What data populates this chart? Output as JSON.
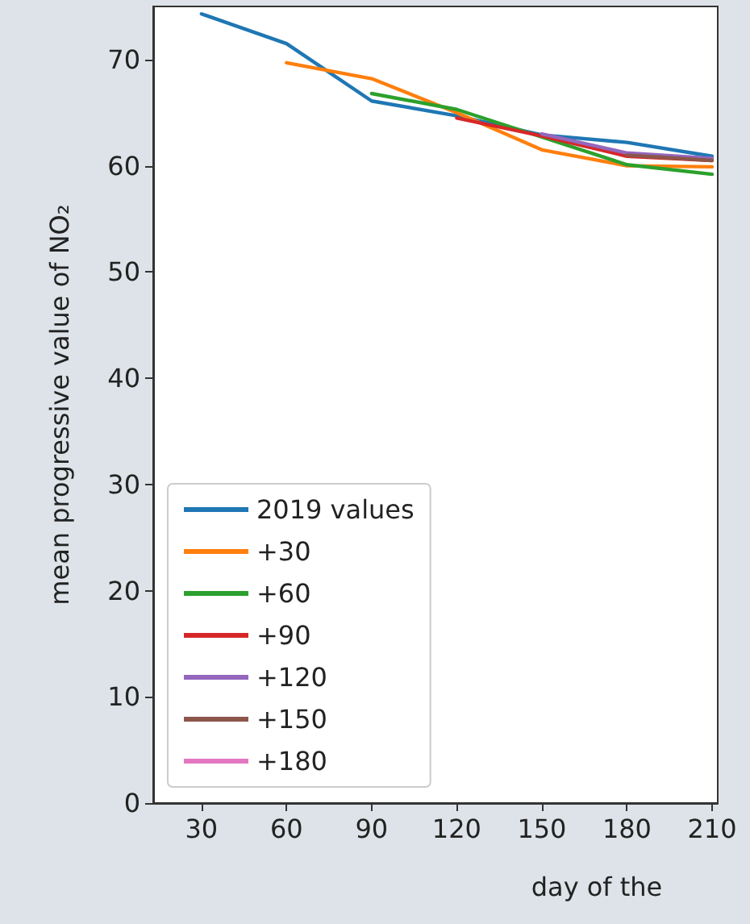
{
  "chart_data": {
    "type": "line",
    "xlabel": "day of the",
    "ylabel": "mean progressive value of NO₂",
    "x": [
      30,
      60,
      90,
      120,
      150,
      180,
      210
    ],
    "series": [
      {
        "name": "2019 values",
        "color": "#1f77b4",
        "values": [
          74.3,
          71.5,
          66.1,
          64.7,
          62.9,
          62.2,
          60.9
        ]
      },
      {
        "name": "+30",
        "color": "#ff7f0e",
        "values": [
          null,
          69.7,
          68.2,
          65.0,
          61.5,
          60.0,
          59.9
        ]
      },
      {
        "name": "+60",
        "color": "#2ca02c",
        "values": [
          null,
          null,
          66.8,
          65.3,
          62.7,
          60.1,
          59.2
        ]
      },
      {
        "name": "+90",
        "color": "#d62728",
        "values": [
          null,
          null,
          null,
          64.5,
          62.8,
          60.9,
          60.5
        ]
      },
      {
        "name": "+120",
        "color": "#9467bd",
        "values": [
          null,
          null,
          null,
          null,
          63.0,
          61.2,
          60.7
        ]
      },
      {
        "name": "+150",
        "color": "#8c564b",
        "values": [
          null,
          null,
          null,
          null,
          null,
          61.0,
          60.5
        ]
      },
      {
        "name": "+180",
        "color": "#e377c2",
        "values": [
          null,
          null,
          null,
          null,
          null,
          null,
          null
        ]
      }
    ],
    "xlim": [
      13,
      212
    ],
    "xticks": [
      30,
      60,
      90,
      120,
      150,
      180,
      210
    ],
    "ylim": [
      0,
      75
    ],
    "yticks": [
      0,
      10,
      20,
      30,
      40,
      50,
      60,
      70
    ],
    "grid": false,
    "legend": "bottom left",
    "marker": "none",
    "line_style": "solid"
  }
}
